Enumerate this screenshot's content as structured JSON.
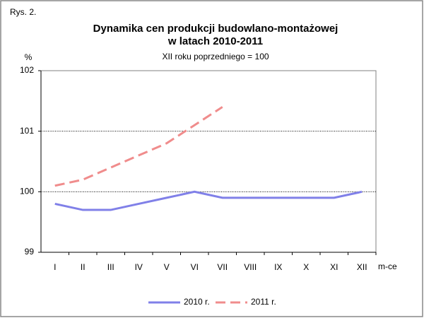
{
  "chart_data": {
    "type": "line",
    "figure_label": "Rys. 2.",
    "title": [
      "Dynamika cen produkcji budowlano-montażowej",
      "w latach 2010-2011"
    ],
    "subtitle": "XII roku poprzedniego = 100",
    "y_label": "%",
    "x_label": "m-ce",
    "categories": [
      "I",
      "II",
      "III",
      "IV",
      "V",
      "VI",
      "VII",
      "VIII",
      "IX",
      "X",
      "XI",
      "XII"
    ],
    "series": [
      {
        "name": "2010 r.",
        "color": "#8080e8",
        "dashed": false,
        "values": [
          99.8,
          99.7,
          99.7,
          99.8,
          99.9,
          100.0,
          99.9,
          99.9,
          99.9,
          99.9,
          99.9,
          100.0
        ]
      },
      {
        "name": "2011 r.",
        "color": "#f08c8c",
        "dashed": true,
        "values": [
          100.1,
          100.2,
          100.4,
          100.6,
          100.8,
          101.1,
          101.4,
          null,
          null,
          null,
          null,
          null
        ]
      }
    ],
    "ylim": [
      99,
      102
    ],
    "yticks": [
      99,
      100,
      101,
      102
    ],
    "grid": true,
    "legend": "bottom"
  }
}
